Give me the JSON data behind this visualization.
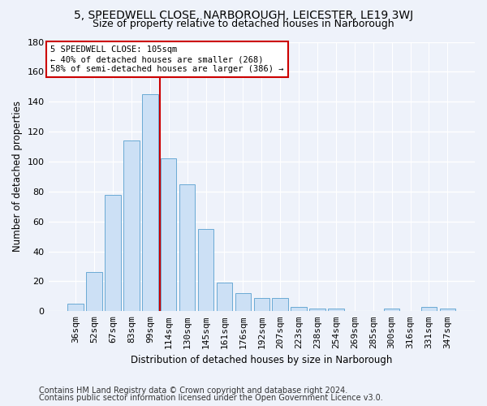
{
  "title1": "5, SPEEDWELL CLOSE, NARBOROUGH, LEICESTER, LE19 3WJ",
  "title2": "Size of property relative to detached houses in Narborough",
  "xlabel": "Distribution of detached houses by size in Narborough",
  "ylabel": "Number of detached properties",
  "categories": [
    "36sqm",
    "52sqm",
    "67sqm",
    "83sqm",
    "99sqm",
    "114sqm",
    "130sqm",
    "145sqm",
    "161sqm",
    "176sqm",
    "192sqm",
    "207sqm",
    "223sqm",
    "238sqm",
    "254sqm",
    "269sqm",
    "285sqm",
    "300sqm",
    "316sqm",
    "331sqm",
    "347sqm"
  ],
  "values": [
    5,
    26,
    78,
    114,
    145,
    102,
    85,
    55,
    19,
    12,
    9,
    9,
    3,
    2,
    2,
    0,
    0,
    2,
    0,
    3,
    2
  ],
  "bar_color": "#cce0f5",
  "bar_edge_color": "#6aaad4",
  "vline_color": "#cc0000",
  "annotation_text": "5 SPEEDWELL CLOSE: 105sqm\n← 40% of detached houses are smaller (268)\n58% of semi-detached houses are larger (386) →",
  "annotation_box_color": "#ffffff",
  "annotation_box_edge": "#cc0000",
  "ylim": [
    0,
    180
  ],
  "yticks": [
    0,
    20,
    40,
    60,
    80,
    100,
    120,
    140,
    160,
    180
  ],
  "footer1": "Contains HM Land Registry data © Crown copyright and database right 2024.",
  "footer2": "Contains public sector information licensed under the Open Government Licence v3.0.",
  "bg_color": "#eef2fa",
  "plot_bg_color": "#eef2fa",
  "grid_color": "#ffffff",
  "title1_fontsize": 10,
  "title2_fontsize": 9,
  "xlabel_fontsize": 8.5,
  "ylabel_fontsize": 8.5,
  "footer_fontsize": 7,
  "tick_fontsize": 8,
  "annot_fontsize": 7.5
}
